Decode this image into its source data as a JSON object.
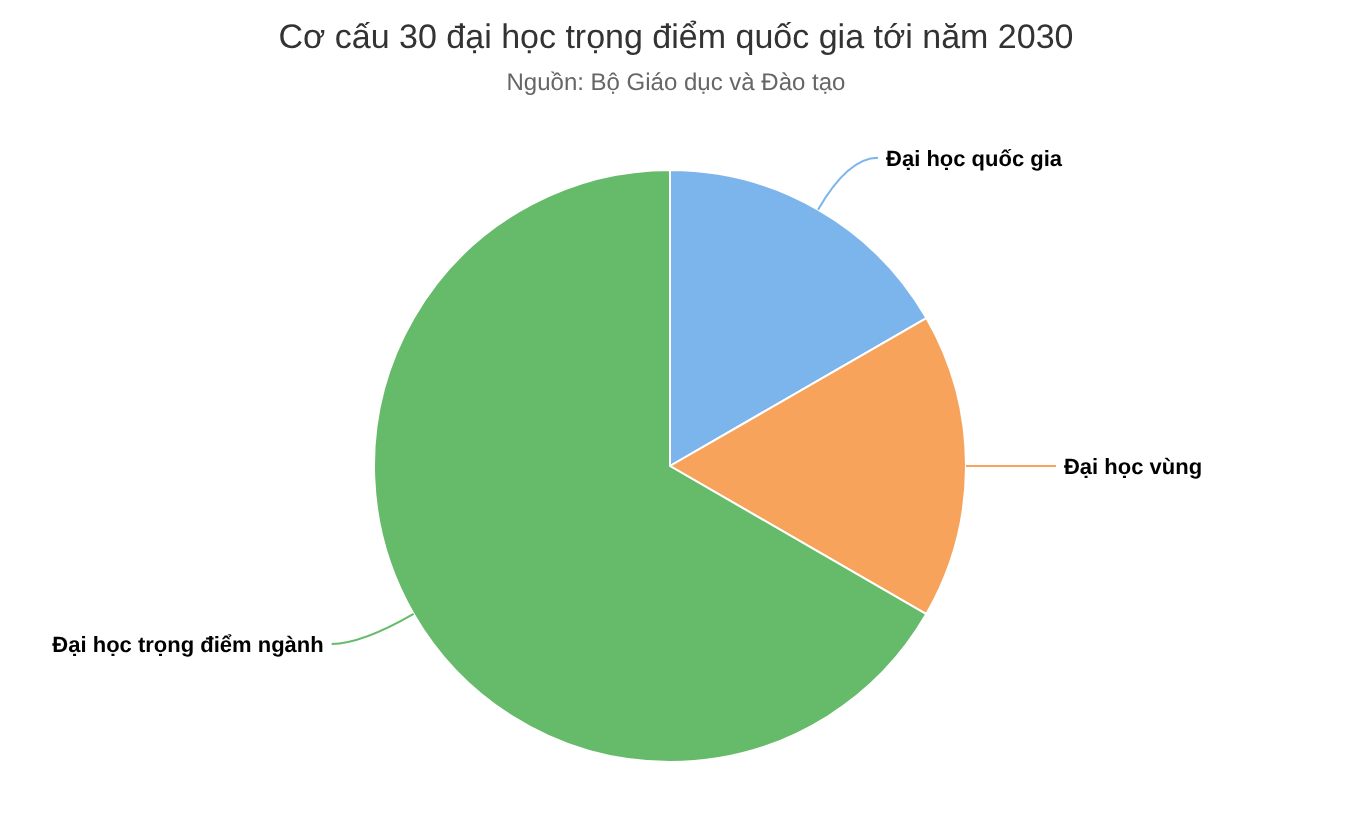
{
  "chart_data": {
    "type": "pie",
    "title": "Cơ cấu 30 đại học trọng điểm quốc gia tới năm 2030",
    "subtitle": "Nguồn: Bộ Giáo dục và Đào tạo",
    "categories": [
      "Đại học quốc gia",
      "Đại học vùng",
      "Đại học trọng điểm ngành"
    ],
    "values": [
      16.67,
      16.67,
      66.66
    ],
    "colors": [
      "#7cb5ec",
      "#f7a35c",
      "#66bb6a"
    ],
    "legend": false
  }
}
